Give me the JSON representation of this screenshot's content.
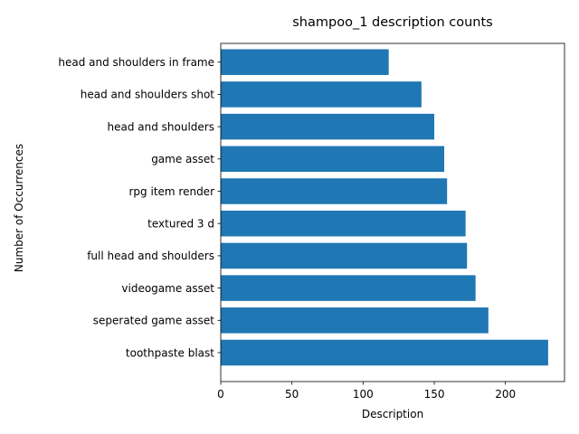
{
  "chart_data": {
    "type": "bar",
    "orientation": "horizontal",
    "title": "shampoo_1 description counts",
    "xlabel": "Description",
    "ylabel": "Number of Occurrences",
    "categories": [
      "toothpaste blast",
      "seperated game asset",
      "videogame asset",
      "full head and shoulders",
      "textured 3 d",
      "rpg item render",
      "game asset",
      "head and shoulders",
      "head and shoulders shot",
      "head and shoulders in frame"
    ],
    "values": [
      230,
      188,
      179,
      173,
      172,
      159,
      157,
      150,
      141,
      118
    ],
    "xlim": [
      0,
      241.5
    ],
    "xticks": [
      0,
      50,
      100,
      150,
      200
    ],
    "bar_color": "#1f77b4",
    "grid": false,
    "legend": "none"
  }
}
